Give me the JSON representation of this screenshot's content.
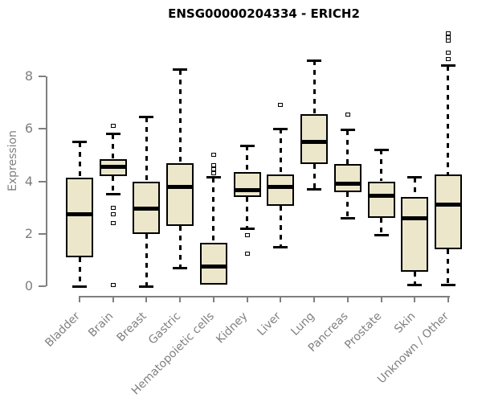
{
  "page": {
    "background": "#ffffff"
  },
  "chart_data": {
    "type": "boxplot",
    "title": "ENSG00000204334 - ERICH2",
    "ylabel": "Expression",
    "xlabel": "",
    "yticks": [
      0,
      2,
      4,
      6,
      8
    ],
    "ylim": [
      0,
      8
    ],
    "grid": false,
    "legend": "none",
    "categories": [
      "Bladder",
      "Brain",
      "Breast",
      "Gastric",
      "Hematopoietic cells",
      "Kidney",
      "Liver",
      "Lung",
      "Pancreas",
      "Prostate",
      "Skin",
      "Unknown / Other"
    ],
    "boxes": [
      {
        "category": "Bladder",
        "whisker_low": 0.0,
        "q1": 1.1,
        "median": 2.75,
        "q3": 4.15,
        "whisker_high": 5.5,
        "outliers": []
      },
      {
        "category": "Brain",
        "whisker_low": 3.5,
        "q1": 4.2,
        "median": 4.55,
        "q3": 4.85,
        "whisker_high": 5.8,
        "outliers": [
          6.1,
          3.0,
          2.75,
          2.4,
          0.05
        ]
      },
      {
        "category": "Breast",
        "whisker_low": 0.0,
        "q1": 2.0,
        "median": 2.95,
        "q3": 4.0,
        "whisker_high": 6.45,
        "outliers": []
      },
      {
        "category": "Gastric",
        "whisker_low": 0.7,
        "q1": 2.3,
        "median": 3.8,
        "q3": 4.7,
        "whisker_high": 8.25,
        "outliers": []
      },
      {
        "category": "Hematopoietic cells",
        "whisker_low": 0.05,
        "q1": 0.05,
        "median": 0.75,
        "q3": 1.65,
        "whisker_high": 4.15,
        "outliers": [
          5.0,
          4.6,
          4.45,
          4.3
        ]
      },
      {
        "category": "Kidney",
        "whisker_low": 2.2,
        "q1": 3.4,
        "median": 3.65,
        "q3": 4.35,
        "whisker_high": 5.35,
        "outliers": [
          1.95,
          1.25
        ]
      },
      {
        "category": "Liver",
        "whisker_low": 1.5,
        "q1": 3.05,
        "median": 3.8,
        "q3": 4.25,
        "whisker_high": 6.0,
        "outliers": [
          6.9
        ]
      },
      {
        "category": "Lung",
        "whisker_low": 3.7,
        "q1": 4.65,
        "median": 5.5,
        "q3": 6.55,
        "whisker_high": 8.6,
        "outliers": []
      },
      {
        "category": "Pancreas",
        "whisker_low": 2.6,
        "q1": 3.6,
        "median": 3.9,
        "q3": 4.65,
        "whisker_high": 5.95,
        "outliers": [
          6.55
        ]
      },
      {
        "category": "Prostate",
        "whisker_low": 1.95,
        "q1": 2.6,
        "median": 3.45,
        "q3": 4.0,
        "whisker_high": 5.2,
        "outliers": []
      },
      {
        "category": "Skin",
        "whisker_low": 0.05,
        "q1": 0.55,
        "median": 2.6,
        "q3": 3.4,
        "whisker_high": 4.15,
        "outliers": []
      },
      {
        "category": "Unknown / Other",
        "whisker_low": 0.05,
        "q1": 1.4,
        "median": 3.1,
        "q3": 4.25,
        "whisker_high": 8.4,
        "outliers": [
          9.65,
          9.5,
          9.35,
          8.9,
          8.65
        ]
      }
    ],
    "colors": {
      "box_fill": "#ece7cb",
      "box_border": "#000000",
      "median": "#000000",
      "whisker": "#000000",
      "outlier_border": "#000000",
      "outlier_fill": "#ffffff",
      "axis": "#7f7f7f",
      "tick_label": "#7f7f7f",
      "title": "#000000"
    }
  }
}
